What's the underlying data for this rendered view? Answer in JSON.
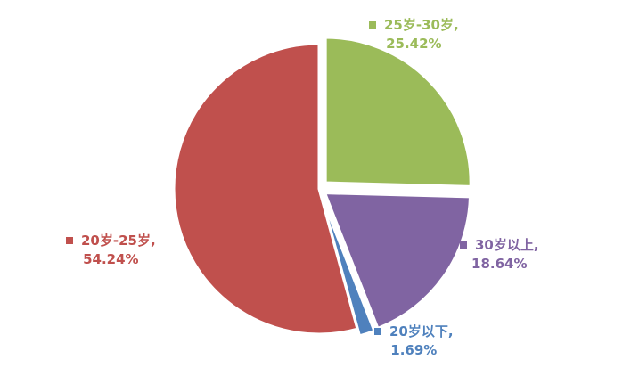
{
  "chart_data": {
    "type": "pie",
    "title": "",
    "slices": [
      {
        "label": "25岁-30岁",
        "pct_text": "25.42%",
        "value": 25.42,
        "color": "#9BBB59"
      },
      {
        "label": "30岁以上",
        "pct_text": "18.64%",
        "value": 18.64,
        "color": "#8064A2"
      },
      {
        "label": "20岁以下",
        "pct_text": "1.69%",
        "value": 1.69,
        "color": "#4F81BD"
      },
      {
        "label": "20岁-25岁",
        "pct_text": "54.24%",
        "value": 54.24,
        "color": "#C0504D"
      }
    ],
    "start_angle_deg": 0,
    "direction": "clockwise",
    "exploded": true
  }
}
